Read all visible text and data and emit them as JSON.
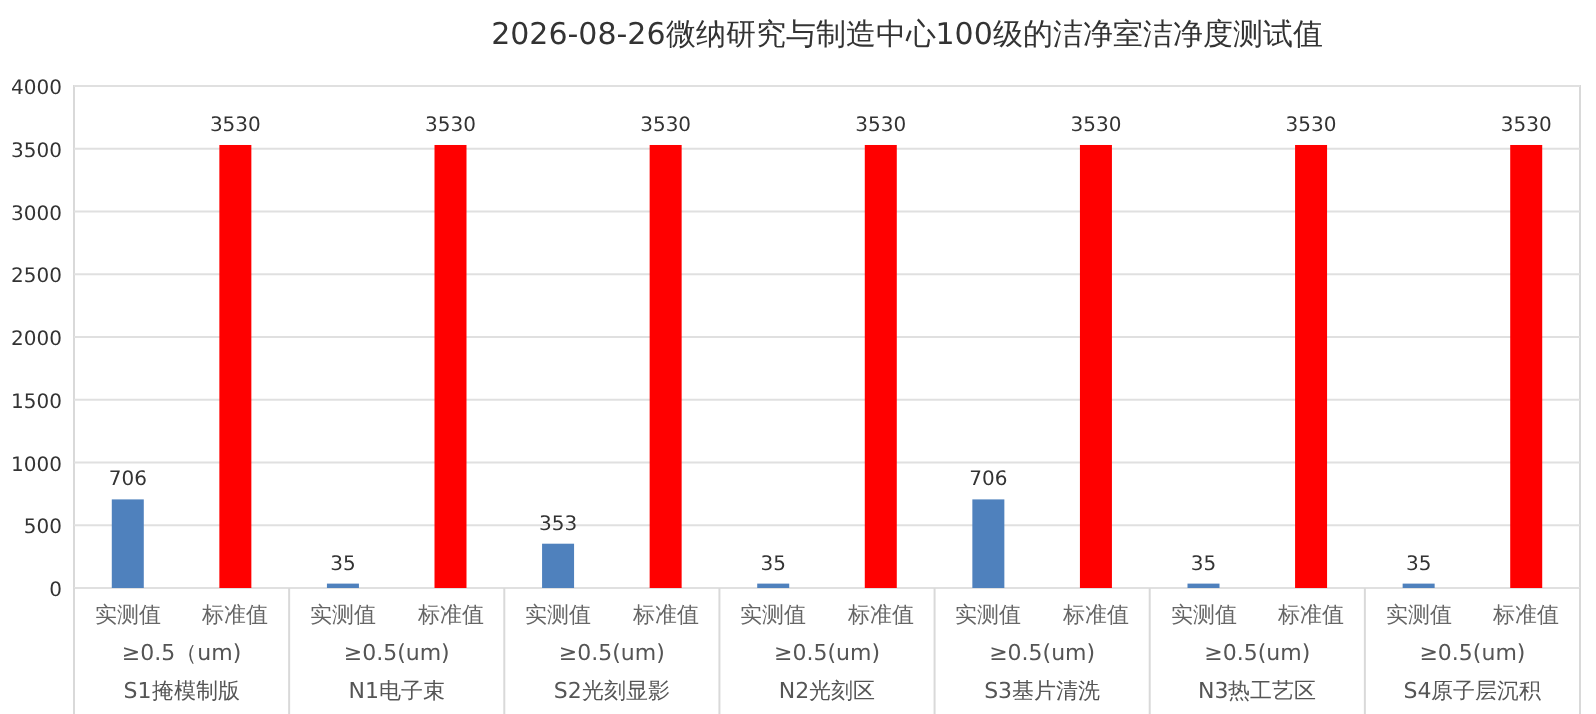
{
  "chart_data": {
    "type": "bar",
    "title": "2026-08-26微纳研究与制造中心100级的洁净室洁净度测试值",
    "categories": [
      "≥0.5（um)\nS1掩模制版",
      "≥0.5(um)\nN1电子束",
      "≥0.5(um)\nS2光刻显影",
      "≥0.5(um)\nN2光刻区",
      "≥0.5(um)\nS3基片清洗",
      "≥0.5(um)\nN3热工艺区",
      "≥0.5(um)\nS4原子层沉积"
    ],
    "series": [
      {
        "name": "实测值",
        "color": "#4f81bd",
        "values": [
          706,
          35,
          353,
          35,
          706,
          35,
          35
        ]
      },
      {
        "name": "标准值",
        "color": "#ff0000",
        "values": [
          3530,
          3530,
          3530,
          3530,
          3530,
          3530,
          3530
        ]
      }
    ],
    "ylim": [
      0,
      4000
    ],
    "yticks": [
      0,
      500,
      1000,
      1500,
      2000,
      2500,
      3000,
      3500,
      4000
    ],
    "grid": "y",
    "data_labels": true,
    "legend": false
  }
}
